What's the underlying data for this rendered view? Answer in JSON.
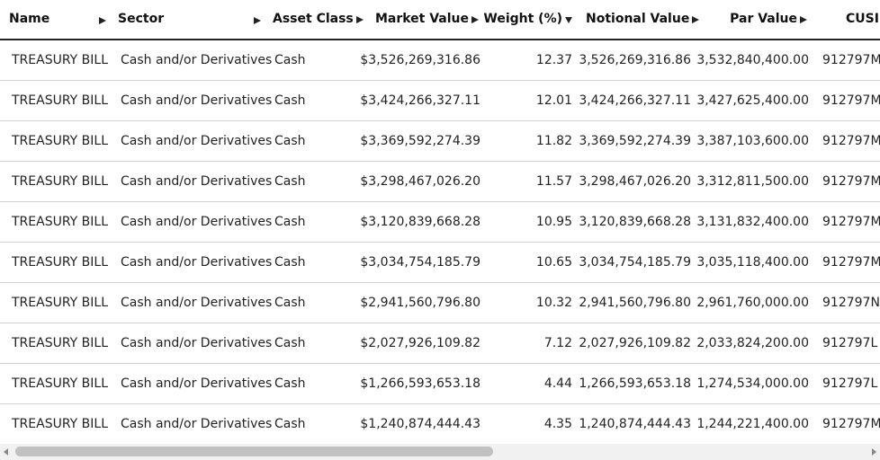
{
  "table": {
    "header": [
      "Name",
      "Sector",
      "Asset Class",
      "Market Value",
      "Weight (%)",
      "Notional Value",
      "Par Value",
      "CUSI"
    ],
    "rows": [
      [
        "TREASURY BILL",
        "Cash and/or Derivatives",
        "Cash",
        "$3,526,269,316.86",
        "12.37",
        "3,526,269,316.86",
        "3,532,840,400.00",
        "912797M"
      ],
      [
        "TREASURY BILL",
        "Cash and/or Derivatives",
        "Cash",
        "$3,424,266,327.11",
        "12.01",
        "3,424,266,327.11",
        "3,427,625,400.00",
        "912797M"
      ],
      [
        "TREASURY BILL",
        "Cash and/or Derivatives",
        "Cash",
        "$3,369,592,274.39",
        "11.82",
        "3,369,592,274.39",
        "3,387,103,600.00",
        "912797M"
      ],
      [
        "TREASURY BILL",
        "Cash and/or Derivatives",
        "Cash",
        "$3,298,467,026.20",
        "11.57",
        "3,298,467,026.20",
        "3,312,811,500.00",
        "912797M"
      ],
      [
        "TREASURY BILL",
        "Cash and/or Derivatives",
        "Cash",
        "$3,120,839,668.28",
        "10.95",
        "3,120,839,668.28",
        "3,131,832,400.00",
        "912797M"
      ],
      [
        "TREASURY BILL",
        "Cash and/or Derivatives",
        "Cash",
        "$3,034,754,185.79",
        "10.65",
        "3,034,754,185.79",
        "3,035,118,400.00",
        "912797M"
      ],
      [
        "TREASURY BILL",
        "Cash and/or Derivatives",
        "Cash",
        "$2,941,560,796.80",
        "10.32",
        "2,941,560,796.80",
        "2,961,760,000.00",
        "912797N"
      ],
      [
        "TREASURY BILL",
        "Cash and/or Derivatives",
        "Cash",
        "$2,027,926,109.82",
        "7.12",
        "2,027,926,109.82",
        "2,033,824,200.00",
        "912797L"
      ],
      [
        "TREASURY BILL",
        "Cash and/or Derivatives",
        "Cash",
        "$1,266,593,653.18",
        "4.44",
        "1,266,593,653.18",
        "1,274,534,000.00",
        "912797L"
      ],
      [
        "TREASURY BILL",
        "Cash and/or Derivatives",
        "Cash",
        "$1,240,874,444.43",
        "4.35",
        "1,240,874,444.43",
        "1,244,221,400.00",
        "912797M"
      ]
    ]
  }
}
